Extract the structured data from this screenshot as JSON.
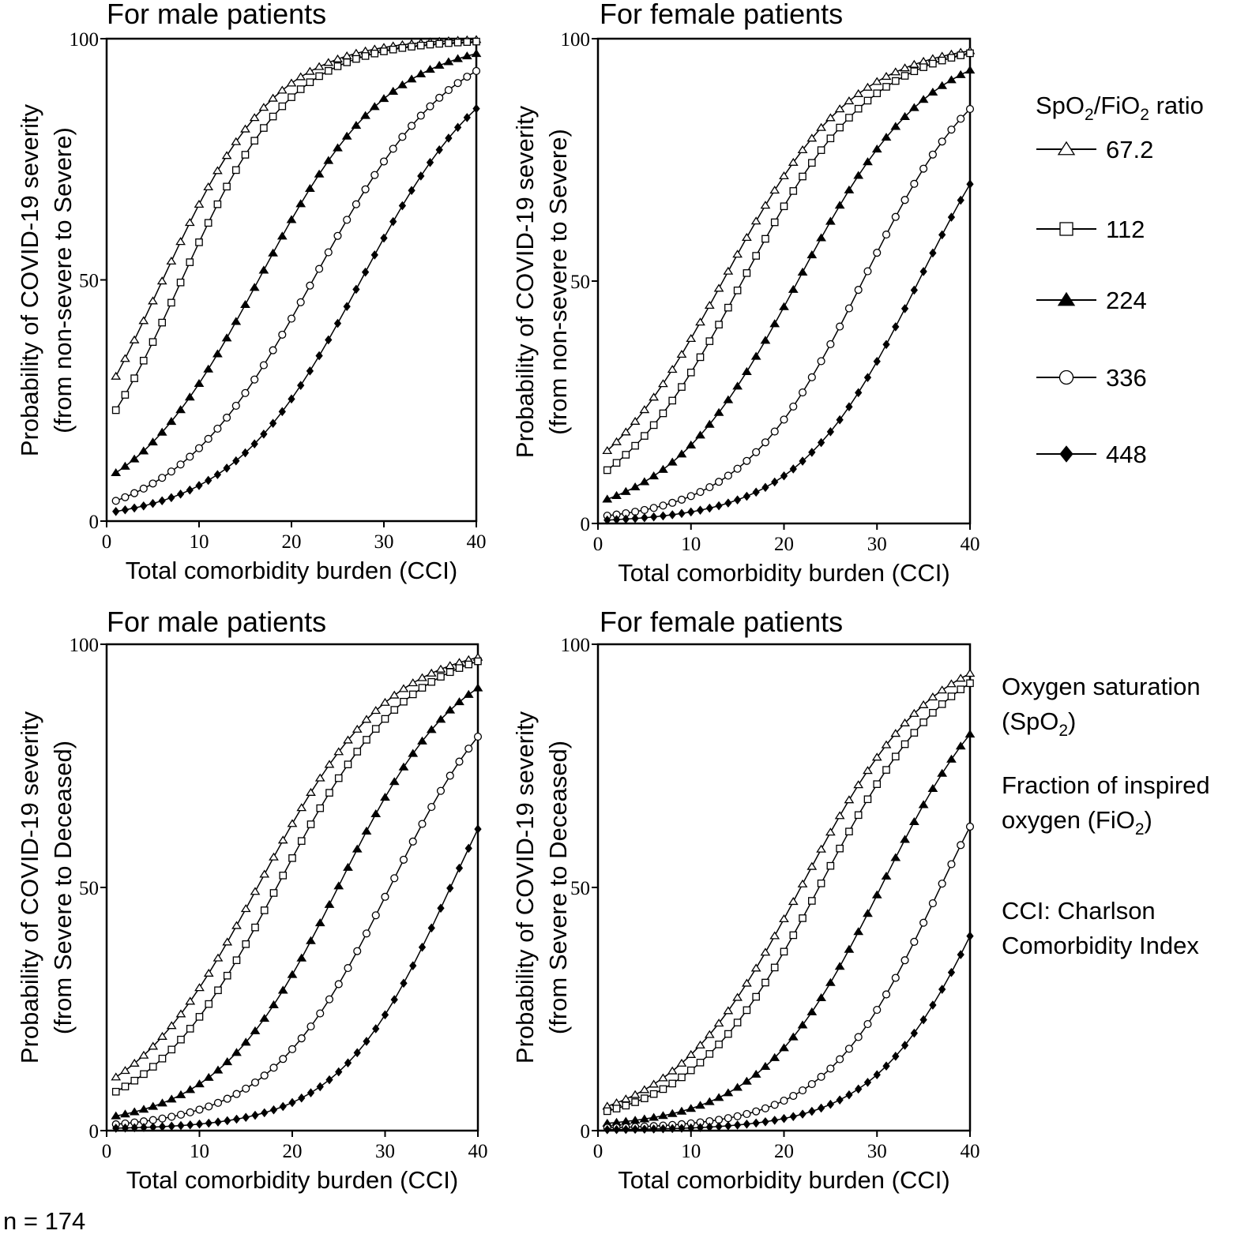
{
  "chart_data": [
    {
      "type": "line",
      "title": "For male patients",
      "xlabel": "Total comorbidity burden (CCI)",
      "ylabel": [
        "Probability of COVID-19 severity",
        "(from non-severe to Severe)"
      ],
      "xlim": [
        0,
        40
      ],
      "ylim": [
        0,
        100
      ],
      "xticks": [
        "0",
        "10",
        "20",
        "30",
        "40"
      ],
      "yticks": [
        "0",
        "50",
        "100"
      ],
      "x": [
        1,
        40
      ],
      "series": [
        {
          "name": "67.2",
          "marker": "triangle-open",
          "mid": 5.8,
          "scale": 6.2,
          "values": [
            30.0,
            99.8
          ]
        },
        {
          "name": "112",
          "marker": "square-open",
          "mid": 8.0,
          "scale": 6.0,
          "values": [
            23.0,
            99.4
          ]
        },
        {
          "name": "224",
          "marker": "triangle-filled",
          "mid": 16.5,
          "scale": 7.0,
          "values": [
            10.0,
            96.9
          ]
        },
        {
          "name": "336",
          "marker": "circle-open",
          "mid": 22.5,
          "scale": 7.5,
          "values": [
            4.2,
            93.3
          ]
        },
        {
          "name": "448",
          "marker": "diamond-filled",
          "mid": 27.5,
          "scale": 7.0,
          "values": [
            2.0,
            85.5
          ]
        }
      ]
    },
    {
      "type": "line",
      "title": "For female patients",
      "xlabel": "Total comorbidity burden (CCI)",
      "ylabel": [
        "Probability of COVID-19 severity",
        "(from non-severe to Severe)"
      ],
      "xlim": [
        0,
        40
      ],
      "ylim": [
        0,
        100
      ],
      "xticks": [
        "0",
        "10",
        "20",
        "30",
        "40"
      ],
      "yticks": [
        "0",
        "50",
        "100"
      ],
      "x": [
        1,
        40
      ],
      "series": [
        {
          "name": "67.2",
          "marker": "triangle-open",
          "mid": 13.5,
          "scale": 7.0,
          "values": [
            15.0,
            97.5
          ]
        },
        {
          "name": "112",
          "marker": "square-open",
          "mid": 15.5,
          "scale": 7.0,
          "values": [
            11.0,
            97.0
          ]
        },
        {
          "name": "224",
          "marker": "triangle-filled",
          "mid": 21.5,
          "scale": 7.0,
          "values": [
            5.0,
            93.5
          ]
        },
        {
          "name": "336",
          "marker": "circle-open",
          "mid": 28.5,
          "scale": 6.5,
          "values": [
            1.6,
            85.5
          ]
        },
        {
          "name": "448",
          "marker": "diamond-filled",
          "mid": 34.5,
          "scale": 6.5,
          "values": [
            0.7,
            70.0
          ]
        }
      ]
    },
    {
      "type": "line",
      "title": "For male patients",
      "xlabel": "Total comorbidity burden (CCI)",
      "ylabel": [
        "Probability of COVID-19 severity",
        "(from Severe to Deceased)"
      ],
      "xlim": [
        0,
        40
      ],
      "ylim": [
        0,
        100
      ],
      "xticks": [
        "0",
        "10",
        "20",
        "30",
        "40"
      ],
      "yticks": [
        "0",
        "50",
        "100"
      ],
      "x": [
        1,
        40
      ],
      "series": [
        {
          "name": "67.2",
          "marker": "triangle-open",
          "mid": 16.5,
          "scale": 7.0,
          "values": [
            11.0,
            97.3
          ]
        },
        {
          "name": "112",
          "marker": "square-open",
          "mid": 18.5,
          "scale": 7.0,
          "values": [
            8.0,
            96.5
          ]
        },
        {
          "name": "224",
          "marker": "triangle-filled",
          "mid": 25.0,
          "scale": 6.5,
          "values": [
            3.0,
            91.0
          ]
        },
        {
          "name": "336",
          "marker": "circle-open",
          "mid": 30.5,
          "scale": 6.5,
          "values": [
            1.3,
            81.0
          ]
        },
        {
          "name": "448",
          "marker": "diamond-filled",
          "mid": 37.0,
          "scale": 6.0,
          "values": [
            0.5,
            62.0
          ]
        }
      ]
    },
    {
      "type": "line",
      "title": "For female patients",
      "xlabel": "Total comorbidity burden (CCI)",
      "ylabel": [
        "Probability of COVID-19 severity",
        "(from Severe to Deceased)"
      ],
      "xlim": [
        0,
        40
      ],
      "ylim": [
        0,
        100
      ],
      "xticks": [
        "0",
        "10",
        "20",
        "30",
        "40"
      ],
      "yticks": [
        "0",
        "50",
        "100"
      ],
      "x": [
        1,
        40
      ],
      "series": [
        {
          "name": "67.2",
          "marker": "triangle-open",
          "mid": 22.0,
          "scale": 7.0,
          "values": [
            5.0,
            94.0
          ]
        },
        {
          "name": "112",
          "marker": "square-open",
          "mid": 24.0,
          "scale": 7.0,
          "values": [
            4.0,
            92.0
          ]
        },
        {
          "name": "224",
          "marker": "triangle-filled",
          "mid": 30.5,
          "scale": 6.5,
          "values": [
            1.5,
            81.5
          ]
        },
        {
          "name": "336",
          "marker": "circle-open",
          "mid": 36.5,
          "scale": 6.0,
          "values": [
            0.6,
            62.5
          ]
        },
        {
          "name": "448",
          "marker": "diamond-filled",
          "mid": 42.0,
          "scale": 6.0,
          "values": [
            0.2,
            40.0
          ]
        }
      ]
    }
  ],
  "legend": {
    "title_main": "SpO",
    "title_sub1": "2",
    "title_mid": "/FiO",
    "title_sub2": "2",
    "title_end": " ratio",
    "items": [
      {
        "label": "67.2",
        "marker": "triangle-open"
      },
      {
        "label": "112",
        "marker": "square-open"
      },
      {
        "label": "224",
        "marker": "triangle-filled"
      },
      {
        "label": "336",
        "marker": "circle-open"
      },
      {
        "label": "448",
        "marker": "diamond-filled"
      }
    ]
  },
  "notes": {
    "spo2_line1": "Oxygen saturation",
    "spo2_line2_pre": "(SpO",
    "spo2_line2_sub": "2",
    "spo2_line2_post": ")",
    "fio2_line1": "Fraction of inspired",
    "fio2_line2_pre": "oxygen (FiO",
    "fio2_line2_sub": "2",
    "fio2_line2_post": ")",
    "cci_line1": "CCI:  Charlson",
    "cci_line2": "Comorbidity Index"
  },
  "sample_size": "n = 174"
}
